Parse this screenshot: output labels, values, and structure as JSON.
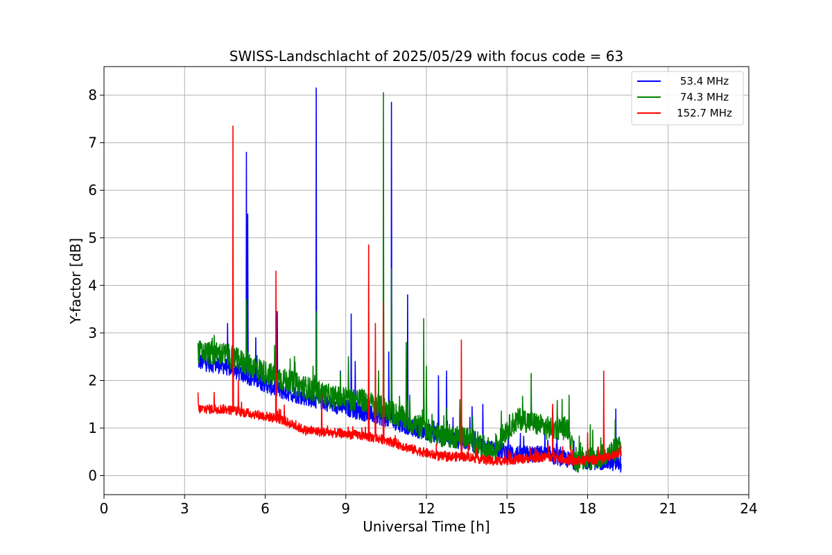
{
  "chart_data": {
    "type": "line",
    "title": "SWISS-Landschlacht of 2025/05/29 with focus code = 63",
    "xlabel": "Universal Time [h]",
    "ylabel": "Y-factor [dB]",
    "xlim": [
      0,
      24
    ],
    "ylim": [
      -0.4,
      8.6
    ],
    "xticks": [
      0,
      3,
      6,
      9,
      12,
      15,
      18,
      21,
      24
    ],
    "yticks": [
      0,
      1,
      2,
      3,
      4,
      5,
      6,
      7,
      8
    ],
    "grid": true,
    "legend_position": "top-right",
    "series": [
      {
        "name": "53.4 MHz",
        "color": "#0000ff",
        "trend": [
          [
            3.5,
            2.4
          ],
          [
            4.5,
            2.3
          ],
          [
            5.5,
            2.05
          ],
          [
            6.5,
            1.8
          ],
          [
            7.5,
            1.65
          ],
          [
            8.5,
            1.5
          ],
          [
            9.5,
            1.35
          ],
          [
            10.5,
            1.2
          ],
          [
            11.5,
            1.0
          ],
          [
            12.5,
            0.85
          ],
          [
            13.5,
            0.7
          ],
          [
            14.5,
            0.55
          ],
          [
            15.5,
            0.45
          ],
          [
            16.5,
            0.45
          ],
          [
            17.5,
            0.3
          ],
          [
            18.5,
            0.3
          ],
          [
            19.25,
            0.25
          ]
        ],
        "spikes": [
          [
            4.6,
            3.2
          ],
          [
            5.3,
            6.8
          ],
          [
            5.35,
            5.5
          ],
          [
            5.65,
            2.9
          ],
          [
            6.4,
            3.35
          ],
          [
            6.45,
            3.45
          ],
          [
            7.9,
            8.15
          ],
          [
            8.8,
            2.2
          ],
          [
            9.2,
            3.4
          ],
          [
            9.35,
            2.4
          ],
          [
            10.6,
            2.6
          ],
          [
            10.7,
            7.85
          ],
          [
            11.3,
            3.8
          ],
          [
            12.45,
            2.1
          ],
          [
            12.75,
            2.2
          ],
          [
            13.7,
            1.45
          ],
          [
            14.1,
            1.5
          ],
          [
            19.05,
            1.4
          ]
        ],
        "noise": 0.18
      },
      {
        "name": "74.3 MHz",
        "color": "#008000",
        "trend": [
          [
            3.5,
            2.6
          ],
          [
            4.5,
            2.55
          ],
          [
            5.5,
            2.3
          ],
          [
            6.5,
            2.05
          ],
          [
            7.5,
            1.85
          ],
          [
            8.5,
            1.65
          ],
          [
            9.5,
            1.6
          ],
          [
            10.5,
            1.4
          ],
          [
            11.5,
            1.1
          ],
          [
            12.5,
            0.85
          ],
          [
            13.5,
            0.8
          ],
          [
            14.5,
            0.5
          ],
          [
            15.0,
            1.0
          ],
          [
            15.5,
            1.2
          ],
          [
            16.5,
            1.0
          ],
          [
            17.3,
            1.0
          ],
          [
            17.5,
            0.3
          ],
          [
            18.5,
            0.4
          ],
          [
            19.25,
            0.6
          ]
        ],
        "spikes": [
          [
            4.1,
            2.95
          ],
          [
            5.3,
            3.7
          ],
          [
            7.9,
            3.45
          ],
          [
            9.1,
            2.5
          ],
          [
            10.4,
            8.05
          ],
          [
            10.7,
            4.35
          ],
          [
            11.25,
            2.8
          ],
          [
            11.9,
            3.3
          ],
          [
            12.0,
            2.3
          ],
          [
            15.9,
            2.15
          ],
          [
            16.7,
            1.45
          ]
        ],
        "noise": 0.25
      },
      {
        "name": "152.7 MHz",
        "color": "#ff0000",
        "trend": [
          [
            3.5,
            1.4
          ],
          [
            4.5,
            1.4
          ],
          [
            5.5,
            1.3
          ],
          [
            6.5,
            1.2
          ],
          [
            7.5,
            0.95
          ],
          [
            8.5,
            0.9
          ],
          [
            9.5,
            0.85
          ],
          [
            10.5,
            0.75
          ],
          [
            11.5,
            0.55
          ],
          [
            12.5,
            0.4
          ],
          [
            13.5,
            0.4
          ],
          [
            14.5,
            0.3
          ],
          [
            15.5,
            0.35
          ],
          [
            16.5,
            0.4
          ],
          [
            17.5,
            0.3
          ],
          [
            18.5,
            0.35
          ],
          [
            19.25,
            0.5
          ]
        ],
        "spikes": [
          [
            3.5,
            1.75
          ],
          [
            4.1,
            1.75
          ],
          [
            4.8,
            7.35
          ],
          [
            5.0,
            2.0
          ],
          [
            6.4,
            4.3
          ],
          [
            8.1,
            1.7
          ],
          [
            9.85,
            4.85
          ],
          [
            10.1,
            3.2
          ],
          [
            10.4,
            3.65
          ],
          [
            13.3,
            2.85
          ],
          [
            16.7,
            1.5
          ],
          [
            18.0,
            0.9
          ],
          [
            18.6,
            2.2
          ]
        ],
        "noise": 0.1
      }
    ]
  }
}
